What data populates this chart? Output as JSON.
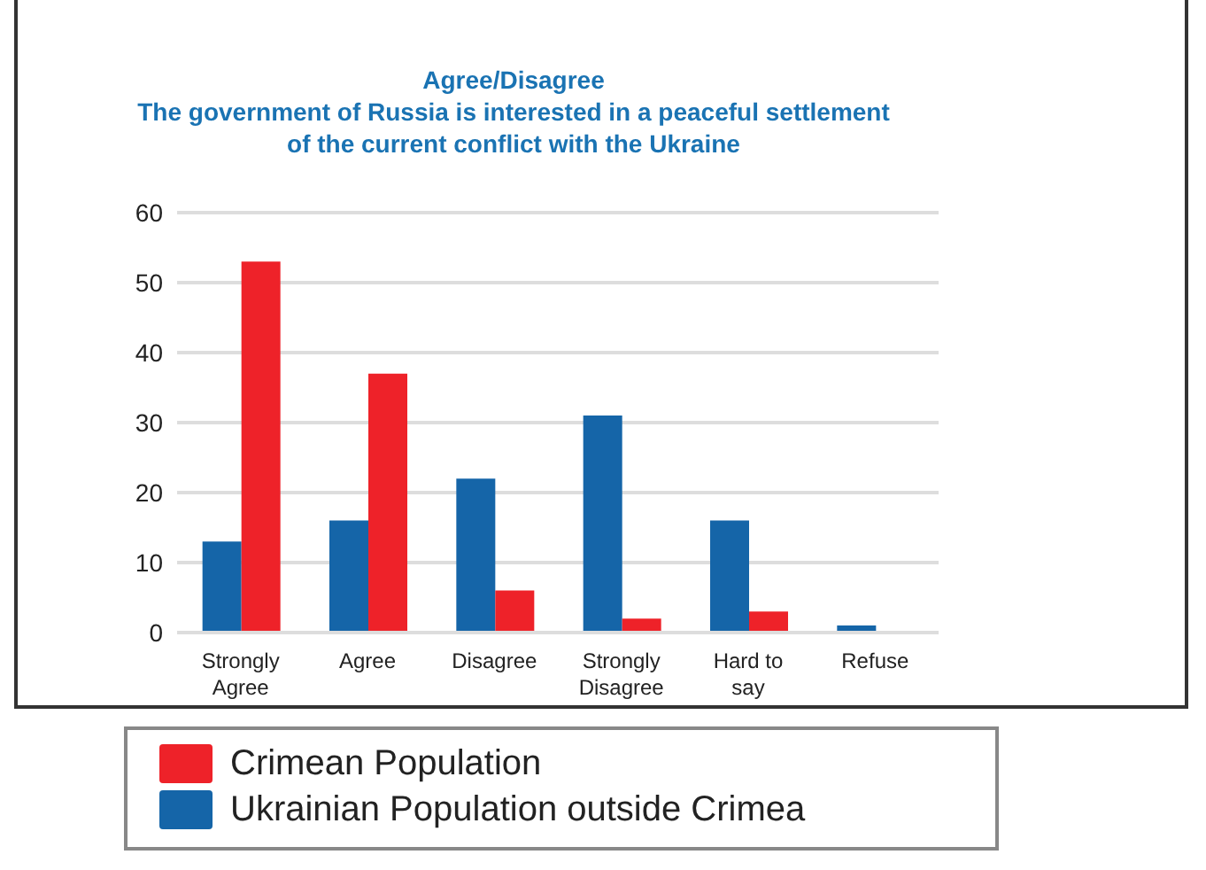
{
  "chart_data": {
    "type": "bar",
    "title": "Agree/Disagree\nThe government of Russia is interested in a peaceful settlement\nof the current conflict with the Ukraine",
    "categories": [
      "Strongly Agree",
      "Agree",
      "Disagree",
      "Strongly Disagree",
      "Hard to say",
      "Refuse"
    ],
    "series": [
      {
        "name": "Ukrainian Population outside Crimea",
        "color": "#1565a8",
        "values": [
          13,
          16,
          22,
          31,
          16,
          1
        ]
      },
      {
        "name": "Crimean Population",
        "color": "#ee2229",
        "values": [
          53,
          37,
          6,
          2,
          3,
          0
        ]
      }
    ],
    "ylim": [
      0,
      60
    ],
    "yticks": [
      0,
      10,
      20,
      30,
      40,
      50,
      60
    ],
    "grid": "y",
    "legend": "bottom"
  }
}
